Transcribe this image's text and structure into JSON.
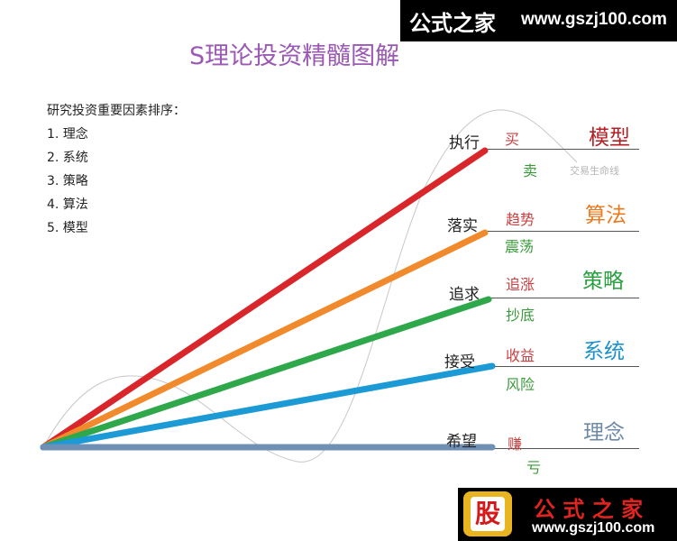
{
  "title": "S理论投资精髓图解",
  "watermark_top": {
    "brand": "公式之家",
    "url": "www.gszj100.com"
  },
  "watermark_bottom": {
    "badge": "股",
    "brand": "公 式 之 家",
    "url": "www.gszj100.com"
  },
  "factors": {
    "heading": "研究投资重要因素排序：",
    "items": [
      "1. 理念",
      "2. 系统",
      "3. 策略",
      "4. 算法",
      "5. 模型"
    ]
  },
  "lifeline_label": "交易生命线",
  "levels": [
    {
      "line_label": "执行",
      "top": "买",
      "bottom": "卖",
      "category": "模型",
      "color": "#d8262b",
      "top_color": "#c94040",
      "bottom_color": "#3a9a3a",
      "cat_color": "#b51f24"
    },
    {
      "line_label": "落实",
      "top": "趋势",
      "bottom": "震荡",
      "category": "算法",
      "color": "#f08a2c",
      "top_color": "#c94040",
      "bottom_color": "#3a9a3a",
      "cat_color": "#ea7a20"
    },
    {
      "line_label": "追求",
      "top": "追涨",
      "bottom": "抄底",
      "category": "策略",
      "color": "#2ea84a",
      "top_color": "#c94040",
      "bottom_color": "#3a9a3a",
      "cat_color": "#2aa040"
    },
    {
      "line_label": "接受",
      "top": "收益",
      "bottom": "风险",
      "category": "系统",
      "color": "#1b9ad6",
      "top_color": "#c94040",
      "bottom_color": "#3a9a3a",
      "cat_color": "#1991cc"
    },
    {
      "line_label": "希望",
      "top": "赚",
      "bottom": "亏",
      "category": "理念",
      "color": "#6f8fb5",
      "top_color": "#c94040",
      "bottom_color": "#3a9a3a",
      "cat_color": "#6e8aa8"
    }
  ]
}
